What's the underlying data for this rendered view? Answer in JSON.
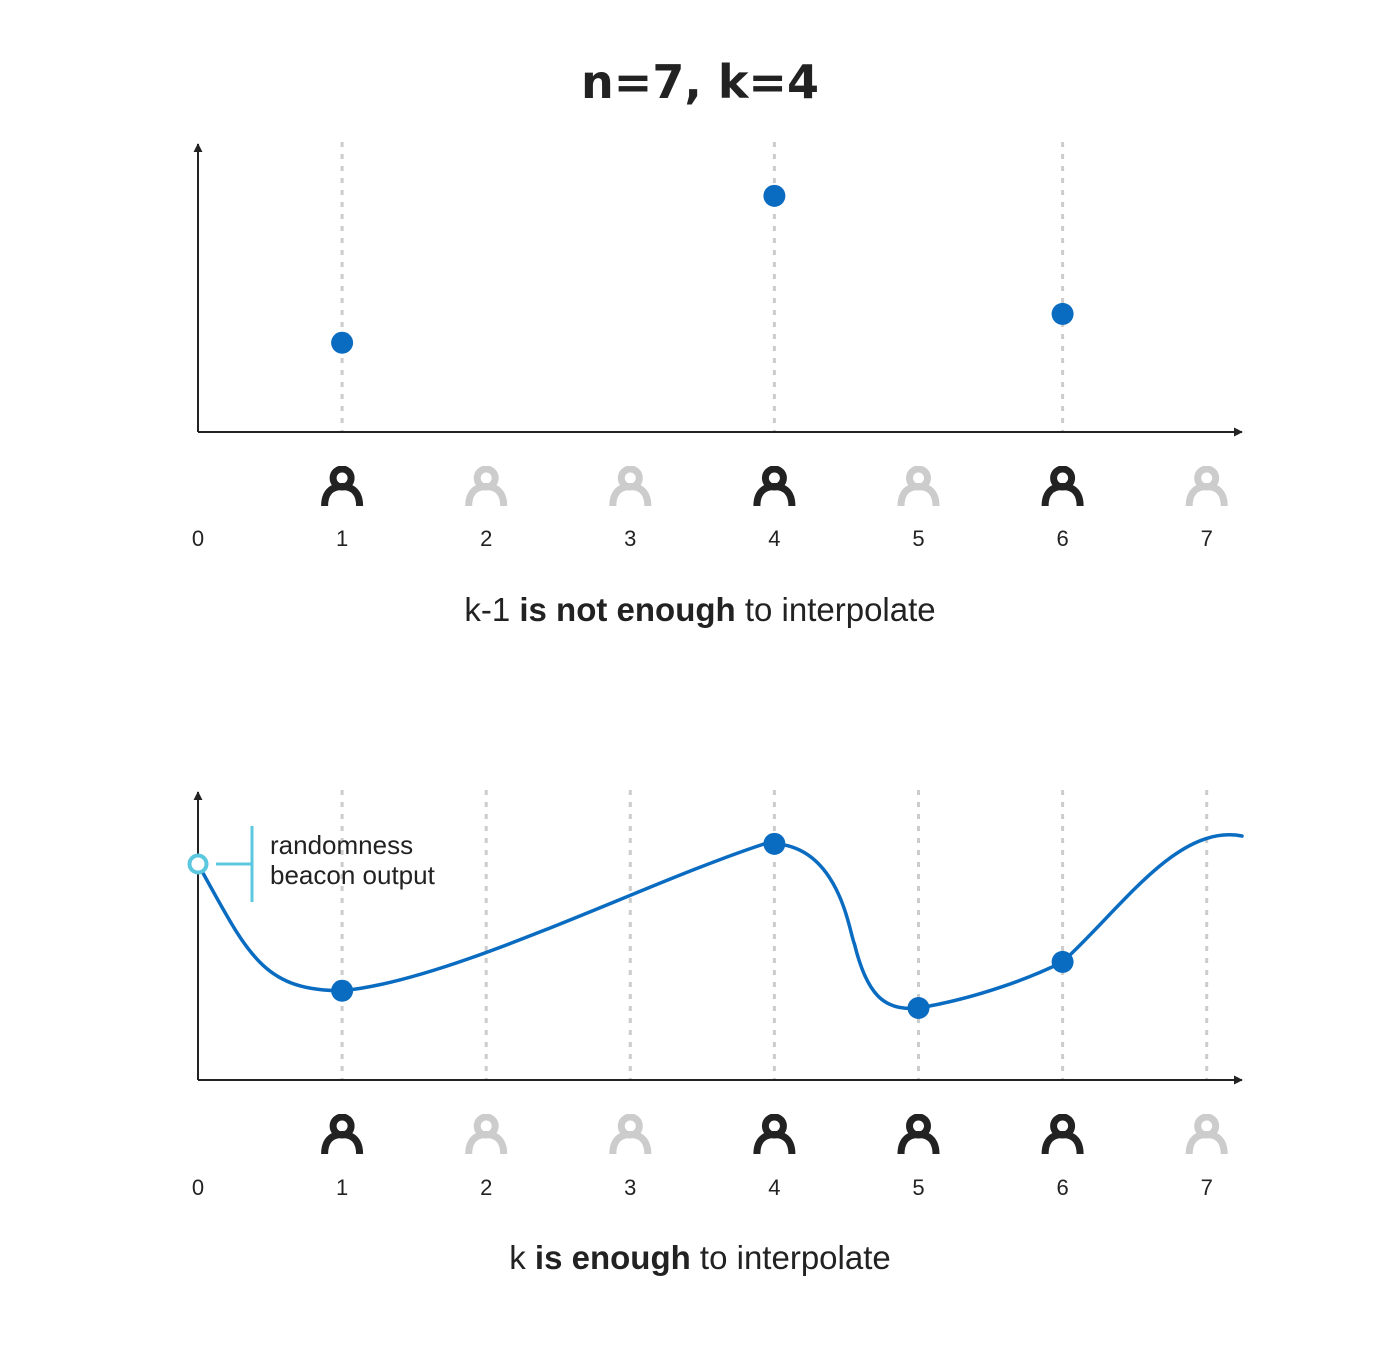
{
  "title": "n=7, k=4",
  "colors": {
    "point": "#0a6cc1",
    "curve": "#0a6cc1",
    "beacon": "#5bc8df",
    "axis": "#222222",
    "grid": "#cccccc",
    "participant_active": "#222222",
    "participant_inactive": "#cccccc"
  },
  "icons": {
    "participant": "person-icon"
  },
  "x_ticks": [
    "0",
    "1",
    "2",
    "3",
    "4",
    "5",
    "6",
    "7"
  ],
  "top_panel": {
    "caption": {
      "pre": "k-1 ",
      "bold": "is not enough",
      "post": " to interpolate"
    },
    "participants_active": [
      1,
      4,
      6
    ],
    "guides": [
      1,
      4,
      6
    ],
    "points": [
      {
        "x": 1,
        "y": 0.31
      },
      {
        "x": 4,
        "y": 0.82
      },
      {
        "x": 6,
        "y": 0.41
      }
    ]
  },
  "bottom_panel": {
    "caption": {
      "pre": "k ",
      "bold": "is enough",
      "post": " to interpolate"
    },
    "participants_active": [
      1,
      4,
      5,
      6
    ],
    "guides": [
      1,
      2,
      3,
      4,
      5,
      6,
      7
    ],
    "points": [
      {
        "x": 1,
        "y": 0.31
      },
      {
        "x": 4,
        "y": 0.82
      },
      {
        "x": 5,
        "y": 0.25
      },
      {
        "x": 6,
        "y": 0.41
      }
    ],
    "beacon": {
      "x": 0,
      "y": 0.75,
      "label_line1": "randomness",
      "label_line2": "beacon output"
    }
  }
}
